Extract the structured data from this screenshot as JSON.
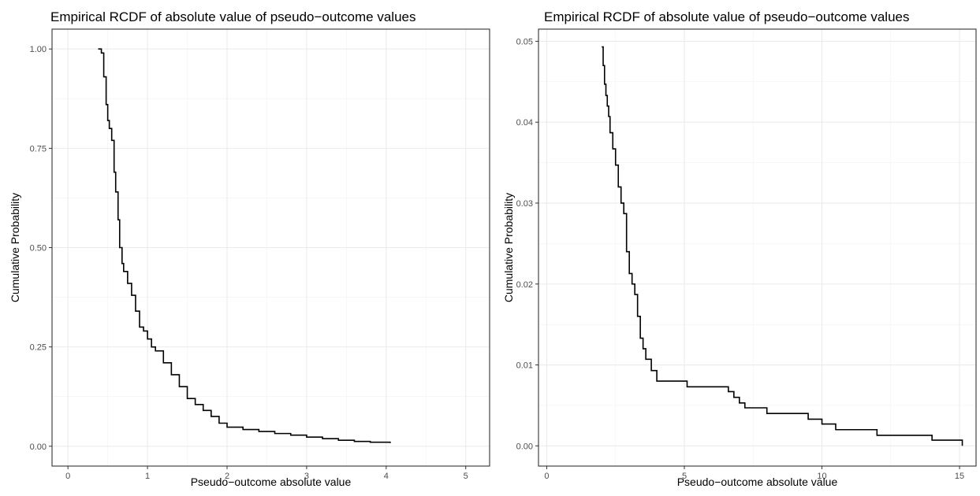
{
  "chart_data": [
    {
      "type": "line",
      "step": true,
      "title": "Empirical RCDF of absolute value of pseudo−outcome values",
      "xlabel": "Pseudo−outcome absolute value",
      "ylabel": "Cumulative Probability",
      "xlim": [
        -0.2,
        5.3
      ],
      "ylim": [
        -0.05,
        1.05
      ],
      "grid": true,
      "x_ticks": [
        0,
        1,
        2,
        3,
        4,
        5
      ],
      "x_tick_labels": [
        "0",
        "1",
        "2",
        "3",
        "4",
        "5"
      ],
      "y_ticks": [
        0.0,
        0.25,
        0.5,
        0.75,
        1.0
      ],
      "y_tick_labels": [
        "0.00",
        "0.25",
        "0.50",
        "0.75",
        "1.00"
      ],
      "series": [
        {
          "color": "#000000",
          "x": [
            0.38,
            0.42,
            0.45,
            0.48,
            0.5,
            0.52,
            0.55,
            0.58,
            0.6,
            0.63,
            0.65,
            0.68,
            0.7,
            0.75,
            0.8,
            0.85,
            0.9,
            0.95,
            1.0,
            1.05,
            1.1,
            1.2,
            1.3,
            1.4,
            1.5,
            1.6,
            1.7,
            1.8,
            1.9,
            2.0,
            2.2,
            2.4,
            2.6,
            2.8,
            3.0,
            3.2,
            3.4,
            3.6,
            3.8,
            4.05
          ],
          "y": [
            1.0,
            0.99,
            0.93,
            0.86,
            0.82,
            0.8,
            0.77,
            0.69,
            0.64,
            0.57,
            0.5,
            0.46,
            0.44,
            0.41,
            0.38,
            0.34,
            0.3,
            0.29,
            0.27,
            0.25,
            0.24,
            0.21,
            0.18,
            0.15,
            0.12,
            0.105,
            0.09,
            0.075,
            0.058,
            0.048,
            0.042,
            0.037,
            0.032,
            0.028,
            0.023,
            0.019,
            0.015,
            0.012,
            0.01,
            0.008
          ]
        }
      ]
    },
    {
      "type": "line",
      "step": true,
      "title": "Empirical RCDF of absolute value of pseudo−outcome values",
      "xlabel": "Pseudo−outcome absolute value",
      "ylabel": "Cumulative Probability",
      "xlim": [
        -0.3,
        15.6
      ],
      "ylim": [
        -0.0025,
        0.0515
      ],
      "grid": true,
      "x_ticks": [
        0,
        5,
        10,
        15
      ],
      "x_tick_labels": [
        "0",
        "5",
        "10",
        "15"
      ],
      "y_ticks": [
        0.0,
        0.01,
        0.02,
        0.03,
        0.04,
        0.05
      ],
      "y_tick_labels": [
        "0.00",
        "0.01",
        "0.02",
        "0.03",
        "0.04",
        "0.05"
      ],
      "series": [
        {
          "color": "#000000",
          "x": [
            2.0,
            2.05,
            2.1,
            2.15,
            2.2,
            2.25,
            2.3,
            2.4,
            2.5,
            2.6,
            2.7,
            2.8,
            2.9,
            3.0,
            3.1,
            3.2,
            3.3,
            3.4,
            3.5,
            3.6,
            3.8,
            4.0,
            5.1,
            6.6,
            6.8,
            7.0,
            7.2,
            8.0,
            9.5,
            10.0,
            10.5,
            12.0,
            14.0,
            15.1
          ],
          "y": [
            0.0493,
            0.047,
            0.0447,
            0.0433,
            0.042,
            0.0407,
            0.0387,
            0.0367,
            0.0347,
            0.032,
            0.03,
            0.0287,
            0.024,
            0.0213,
            0.02,
            0.0187,
            0.016,
            0.0133,
            0.012,
            0.0107,
            0.0093,
            0.008,
            0.0073,
            0.0067,
            0.006,
            0.0053,
            0.0047,
            0.004,
            0.0033,
            0.0027,
            0.002,
            0.0013,
            0.0007,
            0.0
          ]
        }
      ]
    }
  ]
}
